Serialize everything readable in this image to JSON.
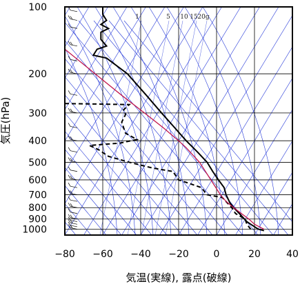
{
  "chart_data": {
    "type": "line",
    "title": "",
    "xlabel": "気温(実線), 露点(破線)",
    "ylabel": "気圧(hPa)",
    "xlim": [
      -80,
      40
    ],
    "ylim": [
      1050,
      100
    ],
    "yscale": "log",
    "x_ticks": [
      "−80",
      "−60",
      "−40",
      "−20",
      "0",
      "20",
      "40"
    ],
    "x_tick_values": [
      -80,
      -60,
      -40,
      -20,
      0,
      20,
      40
    ],
    "y_ticks": [
      "100",
      "200",
      "300",
      "400",
      "500",
      "600",
      "700",
      "800",
      "900",
      "1000"
    ],
    "y_tick_values": [
      100,
      200,
      300,
      400,
      500,
      600,
      700,
      800,
      900,
      1000
    ],
    "mixing_ratio_labels": [
      "1",
      "5",
      "10",
      "15",
      "20g"
    ],
    "mixing_ratio_values": [
      1,
      5,
      10,
      15,
      20
    ],
    "grid": true,
    "series": [
      {
        "role": "temperature",
        "style": "solid",
        "color": "#000000",
        "points": [
          [
            25,
            1015
          ],
          [
            22,
            1000
          ],
          [
            18,
            950
          ],
          [
            16,
            925
          ],
          [
            12,
            850
          ],
          [
            9,
            800
          ],
          [
            7,
            760
          ],
          [
            5,
            700
          ],
          [
            4,
            650
          ],
          [
            1,
            600
          ],
          [
            -2,
            550
          ],
          [
            -5,
            500
          ],
          [
            -10,
            450
          ],
          [
            -16,
            400
          ],
          [
            -22,
            350
          ],
          [
            -29,
            300
          ],
          [
            -37,
            250
          ],
          [
            -47,
            200
          ],
          [
            -58,
            170
          ],
          [
            -65,
            165
          ],
          [
            -63,
            155
          ],
          [
            -58,
            150
          ],
          [
            -61,
            140
          ],
          [
            -61,
            130
          ],
          [
            -57,
            125
          ],
          [
            -61,
            120
          ],
          [
            -58,
            115
          ],
          [
            -60,
            108
          ],
          [
            -60,
            100
          ]
        ]
      },
      {
        "role": "dewpoint",
        "style": "dashed",
        "color": "#000000",
        "points": [
          [
            18,
            1000
          ],
          [
            16,
            950
          ],
          [
            15,
            900
          ],
          [
            10,
            850
          ],
          [
            8,
            800
          ],
          [
            3,
            720
          ],
          [
            -5,
            700
          ],
          [
            -8,
            650
          ],
          [
            -15,
            620
          ],
          [
            -20,
            600
          ],
          [
            -23,
            550
          ],
          [
            -34,
            530
          ],
          [
            -46,
            500
          ],
          [
            -57,
            470
          ],
          [
            -62,
            440
          ],
          [
            -67,
            420
          ],
          [
            -51,
            410
          ],
          [
            -42,
            395
          ],
          [
            -48,
            370
          ],
          [
            -49,
            350
          ],
          [
            -50,
            330
          ],
          [
            -48,
            305
          ],
          [
            -49,
            290
          ],
          [
            -46,
            275
          ],
          [
            -82,
            272
          ]
        ]
      },
      {
        "role": "parcel",
        "style": "solid",
        "color": "#c0144c",
        "points": [
          [
            25,
            1000
          ],
          [
            20,
            950
          ],
          [
            17,
            900
          ],
          [
            13,
            850
          ],
          [
            9,
            800
          ],
          [
            5,
            750
          ],
          [
            2,
            700
          ],
          [
            -3,
            600
          ],
          [
            -9,
            500
          ],
          [
            -16,
            430
          ],
          [
            -20,
            400
          ],
          [
            -28,
            350
          ],
          [
            -38,
            300
          ],
          [
            -50,
            250
          ],
          [
            -64,
            200
          ],
          [
            -82,
            150
          ]
        ]
      }
    ]
  }
}
